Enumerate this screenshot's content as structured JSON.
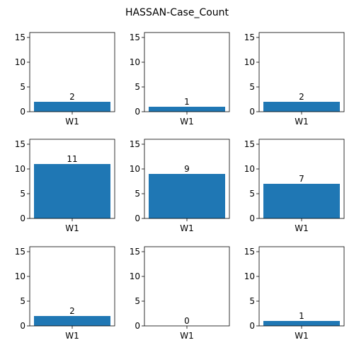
{
  "figure": {
    "title": "HASSAN-Case_Count"
  },
  "style": {
    "bar_color": "#1f77b4",
    "axis_color": "#000000",
    "background": "#ffffff"
  },
  "chart_data": [
    {
      "type": "bar",
      "categories": [
        "W1"
      ],
      "values": [
        2
      ],
      "data_labels": [
        "2"
      ],
      "ylim": [
        0,
        16
      ],
      "yticks": [
        0,
        5,
        10,
        15
      ],
      "grid": false
    },
    {
      "type": "bar",
      "categories": [
        "W1"
      ],
      "values": [
        1
      ],
      "data_labels": [
        "1"
      ],
      "ylim": [
        0,
        16
      ],
      "yticks": [
        0,
        5,
        10,
        15
      ],
      "grid": false
    },
    {
      "type": "bar",
      "categories": [
        "W1"
      ],
      "values": [
        2
      ],
      "data_labels": [
        "2"
      ],
      "ylim": [
        0,
        16
      ],
      "yticks": [
        0,
        5,
        10,
        15
      ],
      "grid": false
    },
    {
      "type": "bar",
      "categories": [
        "W1"
      ],
      "values": [
        11
      ],
      "data_labels": [
        "11"
      ],
      "ylim": [
        0,
        16
      ],
      "yticks": [
        0,
        5,
        10,
        15
      ],
      "grid": false
    },
    {
      "type": "bar",
      "categories": [
        "W1"
      ],
      "values": [
        9
      ],
      "data_labels": [
        "9"
      ],
      "ylim": [
        0,
        16
      ],
      "yticks": [
        0,
        5,
        10,
        15
      ],
      "grid": false
    },
    {
      "type": "bar",
      "categories": [
        "W1"
      ],
      "values": [
        7
      ],
      "data_labels": [
        "7"
      ],
      "ylim": [
        0,
        16
      ],
      "yticks": [
        0,
        5,
        10,
        15
      ],
      "grid": false
    },
    {
      "type": "bar",
      "categories": [
        "W1"
      ],
      "values": [
        2
      ],
      "data_labels": [
        "2"
      ],
      "ylim": [
        0,
        16
      ],
      "yticks": [
        0,
        5,
        10,
        15
      ],
      "grid": false
    },
    {
      "type": "bar",
      "categories": [
        "W1"
      ],
      "values": [
        0
      ],
      "data_labels": [
        "0"
      ],
      "ylim": [
        0,
        16
      ],
      "yticks": [
        0,
        5,
        10,
        15
      ],
      "grid": false
    },
    {
      "type": "bar",
      "categories": [
        "W1"
      ],
      "values": [
        1
      ],
      "data_labels": [
        "1"
      ],
      "ylim": [
        0,
        16
      ],
      "yticks": [
        0,
        5,
        10,
        15
      ],
      "grid": false
    }
  ]
}
